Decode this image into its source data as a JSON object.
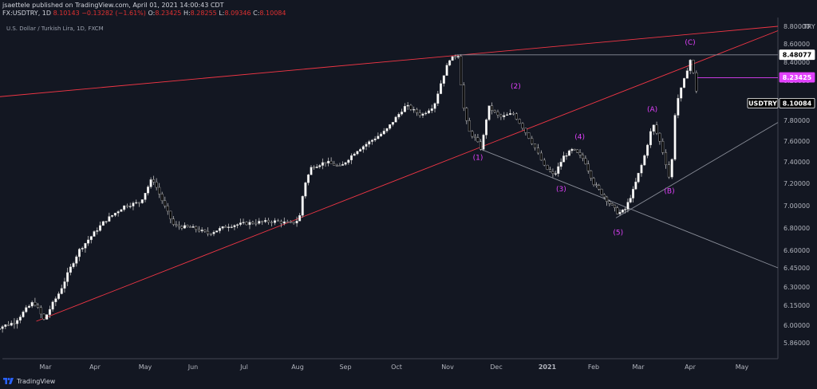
{
  "header": {
    "line1": "jsaettele published on TradingView.com, April 01, 2021 14:00:43 CDT",
    "symbol": "FX:USDTRY, 1D",
    "last": "8.10143",
    "change": "−0.13282 (−1.61%)",
    "o_label": "O:",
    "o": "8.23425",
    "h_label": "H:",
    "h": "8.28255",
    "l_label": "L:",
    "l": "8.09346",
    "c_label": "C:",
    "c": "8.10084"
  },
  "subtitle": "U.S. Dollar / Turkish Lira, 1D, FXCM",
  "footer": {
    "brand": "TradingView"
  },
  "colors": {
    "background": "#131722",
    "up_candle": "#ffffff",
    "down_candle": "#000000",
    "wick": "#bfbfbf",
    "trendline_red": "#f23645",
    "trendline_gray": "#8a8e99",
    "wave_labels": "#e040fb",
    "axis_text": "#b2b5be"
  },
  "chart_data": {
    "type": "candlestick",
    "symbol": "USDTRY",
    "currency_label": "TRY",
    "x_labels": [
      "Mar",
      "Apr",
      "May",
      "Jun",
      "Jul",
      "Aug",
      "Sep",
      "Oct",
      "Nov",
      "Dec",
      "2021",
      "Feb",
      "Mar",
      "Apr",
      "May"
    ],
    "y_ticks": [
      "8.80000",
      "8.60000",
      "8.40000",
      "8.20000",
      "8.00000",
      "7.80000",
      "7.60000",
      "7.40000",
      "7.20000",
      "7.00000",
      "6.80000",
      "6.60000",
      "6.45000",
      "6.30000",
      "6.15000",
      "6.00000",
      "5.86000"
    ],
    "ylim": [
      5.78,
      8.86
    ],
    "price_tags": [
      {
        "value": 8.48077,
        "text": "8.48077",
        "style": "white"
      },
      {
        "value": 8.23425,
        "text": "8.23425",
        "style": "magenta"
      },
      {
        "value": 8.10084,
        "text": "USDTRY",
        "style": "black"
      },
      {
        "value": 8.10084,
        "text": "8.10084",
        "style": "black"
      }
    ],
    "price_path": [
      [
        0,
        5.97
      ],
      [
        0.4,
        6.02
      ],
      [
        0.8,
        6.18
      ],
      [
        1.0,
        6.04
      ],
      [
        1.3,
        6.25
      ],
      [
        1.7,
        6.6
      ],
      [
        2.2,
        6.86
      ],
      [
        2.6,
        7.0
      ],
      [
        2.9,
        7.03
      ],
      [
        3.15,
        7.25
      ],
      [
        3.4,
        7.0
      ],
      [
        3.6,
        6.82
      ],
      [
        4.0,
        6.8
      ],
      [
        4.3,
        6.75
      ],
      [
        4.7,
        6.82
      ],
      [
        5.2,
        6.85
      ],
      [
        5.6,
        6.86
      ],
      [
        5.9,
        6.84
      ],
      [
        6.05,
        6.88
      ],
      [
        6.15,
        7.18
      ],
      [
        6.3,
        7.35
      ],
      [
        6.6,
        7.4
      ],
      [
        6.9,
        7.35
      ],
      [
        7.2,
        7.5
      ],
      [
        7.5,
        7.6
      ],
      [
        7.8,
        7.7
      ],
      [
        8.2,
        7.95
      ],
      [
        8.5,
        7.85
      ],
      [
        8.75,
        7.95
      ],
      [
        8.9,
        8.2
      ],
      [
        9.05,
        8.43
      ],
      [
        9.25,
        8.48
      ],
      [
        9.32,
        8.0
      ],
      [
        9.45,
        7.7
      ],
      [
        9.6,
        7.62
      ],
      [
        9.72,
        7.52
      ],
      [
        9.87,
        7.94
      ],
      [
        10.1,
        7.83
      ],
      [
        10.35,
        7.87
      ],
      [
        10.55,
        7.72
      ],
      [
        10.75,
        7.55
      ],
      [
        10.95,
        7.35
      ],
      [
        11.15,
        7.27
      ],
      [
        11.35,
        7.45
      ],
      [
        11.55,
        7.52
      ],
      [
        11.8,
        7.42
      ],
      [
        12.0,
        7.2
      ],
      [
        12.3,
        7.05
      ],
      [
        12.55,
        6.93
      ],
      [
        12.7,
        6.96
      ],
      [
        12.9,
        7.15
      ],
      [
        13.1,
        7.42
      ],
      [
        13.28,
        7.77
      ],
      [
        13.4,
        7.62
      ],
      [
        13.5,
        7.45
      ],
      [
        13.62,
        7.2
      ],
      [
        13.72,
        7.95
      ],
      [
        13.88,
        8.2
      ],
      [
        14.0,
        8.43
      ],
      [
        14.08,
        8.23
      ],
      [
        14.12,
        8.1
      ]
    ],
    "trendlines": [
      {
        "color": "red",
        "from": [
          -0.05,
          8.03
        ],
        "to": [
          16.1,
          8.8
        ]
      },
      {
        "color": "red",
        "from": [
          0.85,
          6.03
        ],
        "to": [
          16.1,
          8.75
        ]
      },
      {
        "color": "gray",
        "from": [
          9.72,
          7.52
        ],
        "to": [
          16.1,
          6.45
        ]
      },
      {
        "color": "gray",
        "from": [
          12.5,
          6.89
        ],
        "to": [
          16.1,
          7.78
        ]
      },
      {
        "color": "gray",
        "from": [
          9.2,
          8.48
        ],
        "to": [
          16.1,
          8.48
        ]
      },
      {
        "color": "magenta",
        "from": [
          14.1,
          8.23
        ],
        "to": [
          16.1,
          8.23
        ]
      }
    ],
    "wave_labels": [
      {
        "text": "(1)",
        "x": 9.65,
        "y": 7.42
      },
      {
        "text": "(2)",
        "x": 10.4,
        "y": 8.12
      },
      {
        "text": "(3)",
        "x": 11.3,
        "y": 7.13
      },
      {
        "text": "(4)",
        "x": 11.7,
        "y": 7.62
      },
      {
        "text": "(5)",
        "x": 12.55,
        "y": 6.74
      },
      {
        "text": "(A)",
        "x": 13.27,
        "y": 7.89
      },
      {
        "text": "(B)",
        "x": 13.6,
        "y": 7.11
      },
      {
        "text": "(C)",
        "x": 14.0,
        "y": 8.59
      }
    ]
  }
}
